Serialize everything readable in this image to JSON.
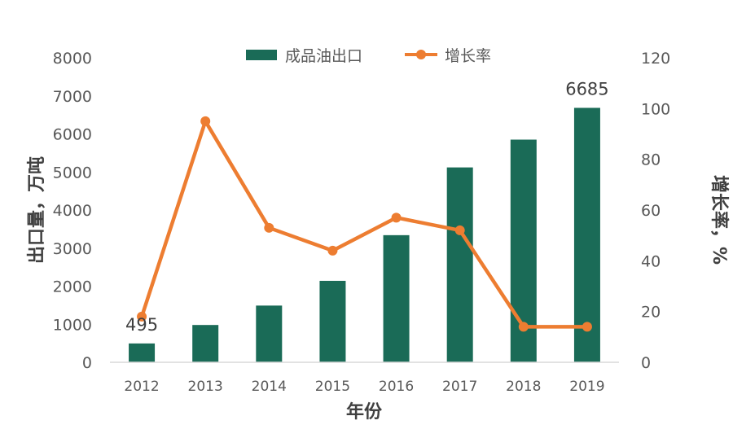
{
  "chart_data": {
    "type": "bar+line",
    "categories": [
      "2012",
      "2013",
      "2014",
      "2015",
      "2016",
      "2017",
      "2018",
      "2019"
    ],
    "series": [
      {
        "name": "成品油出口",
        "type": "bar",
        "axis": "left",
        "color": "#1a6b57",
        "values": [
          495,
          980,
          1490,
          2140,
          3340,
          5120,
          5850,
          6685
        ]
      },
      {
        "name": "增长率",
        "type": "line",
        "axis": "right",
        "color": "#ed7d31",
        "values": [
          18,
          95,
          53,
          44,
          57,
          52,
          14,
          14
        ]
      }
    ],
    "data_labels": [
      {
        "series": 0,
        "index": 0,
        "text": "495"
      },
      {
        "series": 0,
        "index": 7,
        "text": "6685"
      }
    ],
    "xlabel": "年份",
    "ylabel": "出口量，万吨",
    "y2label": "增长率，%",
    "ylim": [
      0,
      8000
    ],
    "yticks": [
      "0",
      "1000",
      "2000",
      "3000",
      "4000",
      "5000",
      "6000",
      "7000",
      "8000"
    ],
    "y2lim": [
      0,
      120
    ],
    "y2ticks": [
      "0",
      "20",
      "40",
      "60",
      "80",
      "100",
      "120"
    ],
    "legend_position": "top",
    "grid": false
  }
}
